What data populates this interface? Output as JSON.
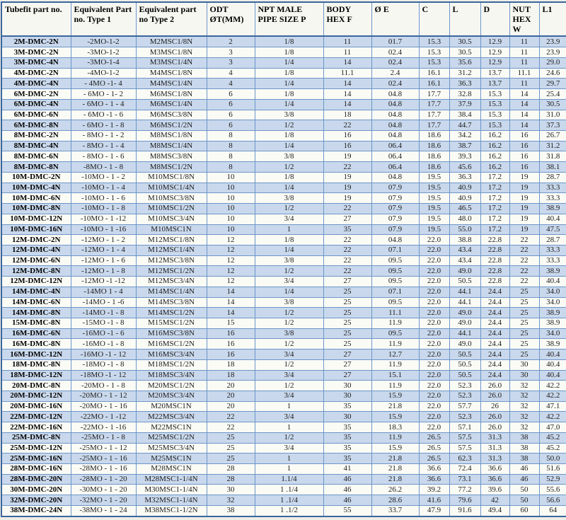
{
  "colors": {
    "page_bg": "#eeeee8",
    "header_bg": "#f7f7f2",
    "stripe_blue": "#c9d8ec",
    "row_white": "#fbfbf6",
    "border_blue": "#6c96c8",
    "border_dark": "#3b669c",
    "text_color": "#1c1c1c"
  },
  "table": {
    "columns": [
      {
        "key": "part-no",
        "label": "Tubefit part no."
      },
      {
        "key": "equiv-type1",
        "label": "Equivalent Part no. Type 1"
      },
      {
        "key": "equiv-type2",
        "label": "Equivalent part no Type 2"
      },
      {
        "key": "odt",
        "label": "ODT ØT(MM)"
      },
      {
        "key": "npt-size",
        "label": "NPT MALE PIPE SIZE P"
      },
      {
        "key": "body-hex-f",
        "label": "BODY HEX F"
      },
      {
        "key": "dia-e",
        "label": "Ø E"
      },
      {
        "key": "c",
        "label": "C"
      },
      {
        "key": "l",
        "label": "L"
      },
      {
        "key": "d",
        "label": "D"
      },
      {
        "key": "nut-hex-w",
        "label": "NUT HEX W"
      },
      {
        "key": "l1",
        "label": "L1"
      }
    ],
    "rows": [
      [
        "2M-DMC-2N",
        "-2MO-1-2",
        "M2MSC1/8N",
        "2",
        "1/8",
        "11",
        "01.7",
        "15.3",
        "30.5",
        "12.9",
        "11",
        "23.9"
      ],
      [
        "3M-DMC-2N",
        "-3MO-1-2",
        "M3MSC1/8N",
        "3",
        "1/8",
        "11",
        "02.4",
        "15.3",
        "30.5",
        "12.9",
        "11",
        "23.9"
      ],
      [
        "3M-DMC-4N",
        "-3MO-1-4",
        "M3MSC1/4N",
        "3",
        "1/4",
        "14",
        "02.4",
        "15.3",
        "35.6",
        "12.9",
        "11",
        "29.0"
      ],
      [
        "4M-DMC-2N",
        "-4MO-1-2",
        "M4MSC1/8N",
        "4",
        "1/8",
        "11.1",
        "2.4",
        "16.1",
        "31.2",
        "13.7",
        "11.1",
        "24.6"
      ],
      [
        "4M-DMC-4N",
        "- 4MO -1- 4",
        "M4MSC1/4N",
        "4",
        "1/4",
        "14",
        "02.4",
        "16.1",
        "36.3",
        "13.7",
        "11",
        "29.7"
      ],
      [
        "6M-DMC-2N",
        "- 6MO - 1- 2",
        "M6MSC1/8N",
        "6",
        "1/8",
        "14",
        "04.8",
        "17.7",
        "32.8",
        "15.3",
        "14",
        "25.4"
      ],
      [
        "6M-DMC-4N",
        "- 6MO - 1 - 4",
        "M6MSC1/4N",
        "6",
        "1/4",
        "14",
        "04.8",
        "17.7",
        "37.9",
        "15.3",
        "14",
        "30.5"
      ],
      [
        "6M-DMC-6N",
        "- 6MO -1 - 6",
        "M6MSC3/8N",
        "6",
        "3/8",
        "18",
        "04.8",
        "17.7",
        "38.4",
        "15.3",
        "14",
        "31.0"
      ],
      [
        "6M-DMC-8N",
        "- 6MO - 1 - 8",
        "M6MSC1/2N",
        "6",
        "1/2",
        "22",
        "04.8",
        "17.7",
        "44.7",
        "15.3",
        "14",
        "37.3"
      ],
      [
        "8M-DMC-2N",
        "- 8MO - 1 - 2",
        "M8MSC1/8N",
        "8",
        "1/8",
        "16",
        "04.8",
        "18.6",
        "34.2",
        "16.2",
        "16",
        "26.7"
      ],
      [
        "8M-DMC-4N",
        "- 8MO - 1 - 4",
        "M8MSC1/4N",
        "8",
        "1/4",
        "16",
        "06.4",
        "18.6",
        "38.7",
        "16.2",
        "16",
        "31.2"
      ],
      [
        "8M-DMC-6N",
        "- 8MO - 1 - 6",
        "M8MSC3/8N",
        "8",
        "3/8",
        "19",
        "06.4",
        "18.6",
        "39.3",
        "16.2",
        "16",
        "31.8"
      ],
      [
        "8M-DMC-8N",
        "-8MO - 1 - 8",
        "M8MSC1/2N",
        "8",
        "1/2",
        "22",
        "06.4",
        "18.6",
        "45.6",
        "16.2",
        "16",
        "38.1"
      ],
      [
        "10M-DMC-2N",
        "-10MO - 1 - 2",
        "M10MSC1/8N",
        "10",
        "1/8",
        "19",
        "04.8",
        "19.5",
        "36.3",
        "17.2",
        "19",
        "28.7"
      ],
      [
        "10M-DMC-4N",
        "-10MO - 1 - 4",
        "M10MSC1/4N",
        "10",
        "1/4",
        "19",
        "07.9",
        "19.5",
        "40.9",
        "17.2",
        "19",
        "33.3"
      ],
      [
        "10M-DMC-6N",
        "-10MO - 1 - 6",
        "M10MSC3/8N",
        "10",
        "3/8",
        "19",
        "07.9",
        "19.5",
        "40.9",
        "17.2",
        "19",
        "33.3"
      ],
      [
        "10M-DMC-8N",
        "-10MO - 1 - 8",
        "M10MSC1/2N",
        "10",
        "1/2",
        "22",
        "07.9",
        "19.5",
        "46.5",
        "17.2",
        "19",
        "38.9"
      ],
      [
        "10M-DMC-12N",
        "-10MO - 1 -12",
        "M10MSC3/4N",
        "10",
        "3/4",
        "27",
        "07.9",
        "19.5",
        "48.0",
        "17.2",
        "19",
        "40.4"
      ],
      [
        "10M-DMC-16N",
        "-10MO - 1 -16",
        "M10MSC1N",
        "10",
        "1",
        "35",
        "07.9",
        "19.5",
        "55.0",
        "17.2",
        "19",
        "47.5"
      ],
      [
        "12M-DMC-2N",
        "-12MO - 1 - 2",
        "M12MSC1/8N",
        "12",
        "1/8",
        "22",
        "04.8",
        "22.0",
        "38.8",
        "22.8",
        "22",
        "28.7"
      ],
      [
        "12M-DMC-4N",
        "-12MO - 1 - 4",
        "M12MSC1/4N",
        "12",
        "1/4",
        "22",
        "07.1",
        "22.0",
        "43.4",
        "22.8",
        "22",
        "33.3"
      ],
      [
        "12M-DMC-6N",
        "-12MO - 1 - 6",
        "M12MSC3/8N",
        "12",
        "3/8",
        "22",
        "09.5",
        "22.0",
        "43.4",
        "22.8",
        "22",
        "33.3"
      ],
      [
        "12M-DMC-8N",
        "-12MO - 1 - 8",
        "M12MSC1/2N",
        "12",
        "1/2",
        "22",
        "09.5",
        "22.0",
        "49.0",
        "22.8",
        "22",
        "38.9"
      ],
      [
        "12M-DMC-12N",
        "-12MO -1 -12",
        "M12MSC3/4N",
        "12",
        "3/4",
        "27",
        "09.5",
        "22.0",
        "50.5",
        "22.8",
        "22",
        "40.4"
      ],
      [
        "14M-DMC-4N",
        "-14MO 1 - 4",
        "M14MSC1/4N",
        "14",
        "1/4",
        "25",
        "07.1",
        "22.0",
        "44.1",
        "24.4",
        "25",
        "34.0"
      ],
      [
        "14M-DMC-6N",
        "-14MO - 1 -6",
        "M14MSC3/8N",
        "14",
        "3/8",
        "25",
        "09.5",
        "22.0",
        "44.1",
        "24.4",
        "25",
        "34.0"
      ],
      [
        "14M-DMC-8N",
        "-14MO -1 - 8",
        "M14MSC1/2N",
        "14",
        "1/2",
        "25",
        "11.1",
        "22.0",
        "49.0",
        "24.4",
        "25",
        "38.9"
      ],
      [
        "15M-DMC-8N",
        "-15MO -1 - 8",
        "M15MSC1/2N",
        "15",
        "1/2",
        "25",
        "11.9",
        "22.0",
        "49.0",
        "24.4",
        "25",
        "38.9"
      ],
      [
        "16M-DMC-6N",
        "-16MO -1 - 6",
        "M16MSC3/8N",
        "16",
        "3/8",
        "25",
        "09.5",
        "22.0",
        "44.1",
        "24.4",
        "25",
        "34.0"
      ],
      [
        "16M-DMC-8N",
        "-16MO -1 - 8",
        "M16MSC1/2N",
        "16",
        "1/2",
        "25",
        "11.9",
        "22.0",
        "49.0",
        "24.4",
        "25",
        "38.9"
      ],
      [
        "16M-DMC-12N",
        "-16MO -1 - 12",
        "M16MSC3/4N",
        "16",
        "3/4",
        "27",
        "12.7",
        "22.0",
        "50.5",
        "24.4",
        "25",
        "40.4"
      ],
      [
        "18M-DMC-8N",
        "-18MO -1 - 8",
        "M18MSC1/2N",
        "18",
        "1/2",
        "27",
        "11.9",
        "22.0",
        "50.5",
        "24.4",
        "30",
        "40.4"
      ],
      [
        "18M-DMC-12N",
        "-18MO -1 - 12",
        "M18MSC3/4N",
        "18",
        "3/4",
        "27",
        "15.1",
        "22.0",
        "50.5",
        "24.4",
        "30",
        "40.4"
      ],
      [
        "20M-DMC-8N",
        "-20MO - 1 - 8",
        "M20MSC1/2N",
        "20",
        "1/2",
        "30",
        "11.9",
        "22.0",
        "52.3",
        "26.0",
        "32",
        "42.2"
      ],
      [
        "20M-DMC-12N",
        "-20MO - 1 - 12",
        "M20MSC3/4N",
        "20",
        "3/4",
        "30",
        "15.9",
        "22.0",
        "52.3",
        "26.0",
        "32",
        "42.2"
      ],
      [
        "20M-DMC-16N",
        "-20MO - 1 - 16",
        "M20MSC1N",
        "20",
        "1",
        "35",
        "21.8",
        "22.0",
        "57.7",
        "26",
        "32",
        "47.1"
      ],
      [
        "22M-DMC-12N",
        "-22MO - 1 -12",
        "M22MSC3/4N",
        "22",
        "3/4",
        "30",
        "15.9",
        "22.0",
        "52.3",
        "26.0",
        "32",
        "42.2"
      ],
      [
        "22M-DMC-16N",
        "-22MO - 1 -16",
        "M22MSC1N",
        "22",
        "1",
        "35",
        "18.3",
        "22.0",
        "57.1",
        "26.0",
        "32",
        "47.0"
      ],
      [
        "25M-DMC-8N",
        "-25MO - 1 - 8",
        "M25MSC1/2N",
        "25",
        "1/2",
        "35",
        "11.9",
        "26.5",
        "57.5",
        "31.3",
        "38",
        "45.2"
      ],
      [
        "25M-DMC-12N",
        "-25MO - 1 - 12",
        "M25MSC3/4N",
        "25",
        "3/4",
        "35",
        "15.9",
        "26.5",
        "57.5",
        "31.3",
        "38",
        "45.2"
      ],
      [
        "25M-DMC-16N",
        "-25MO - 1 - 16",
        "M25MSC1N",
        "25",
        "1",
        "35",
        "21.8",
        "26.5",
        "62.3",
        "31.3",
        "38",
        "50.0"
      ],
      [
        "28M-DMC-16N",
        "-28MO - 1 - 16",
        "M28MSC1N",
        "28",
        "1",
        "41",
        "21.8",
        "36.6",
        "72.4",
        "36.6",
        "46",
        "51.6"
      ],
      [
        "28M-DMC-20N",
        "-28MO - 1 - 20",
        "M28MSC1-1/4N",
        "28",
        "1.1/4",
        "46",
        "21.8",
        "36.6",
        "73.1",
        "36.6",
        "46",
        "52.9"
      ],
      [
        "30M-DMC-20N",
        "-30MO - 1 - 20",
        "M30MSC1-1/4N",
        "30",
        "1 .1/4",
        "46",
        "26.2",
        "39.2",
        "77.2",
        "39.6",
        "50",
        "55.6"
      ],
      [
        "32M-DMC-20N",
        "-32MO - 1 - 20",
        "M32MSC1-1/4N",
        "32",
        "1 .1/4",
        "46",
        "28.6",
        "41.6",
        "79.6",
        "42",
        "50",
        "56.6"
      ],
      [
        "38M-DMC-24N",
        "-38MO - 1 - 24",
        "M38MSC1-1/2N",
        "38",
        "1 .1/2",
        "55",
        "33.7",
        "47.9",
        "91.6",
        "49.4",
        "60",
        "64"
      ]
    ]
  }
}
